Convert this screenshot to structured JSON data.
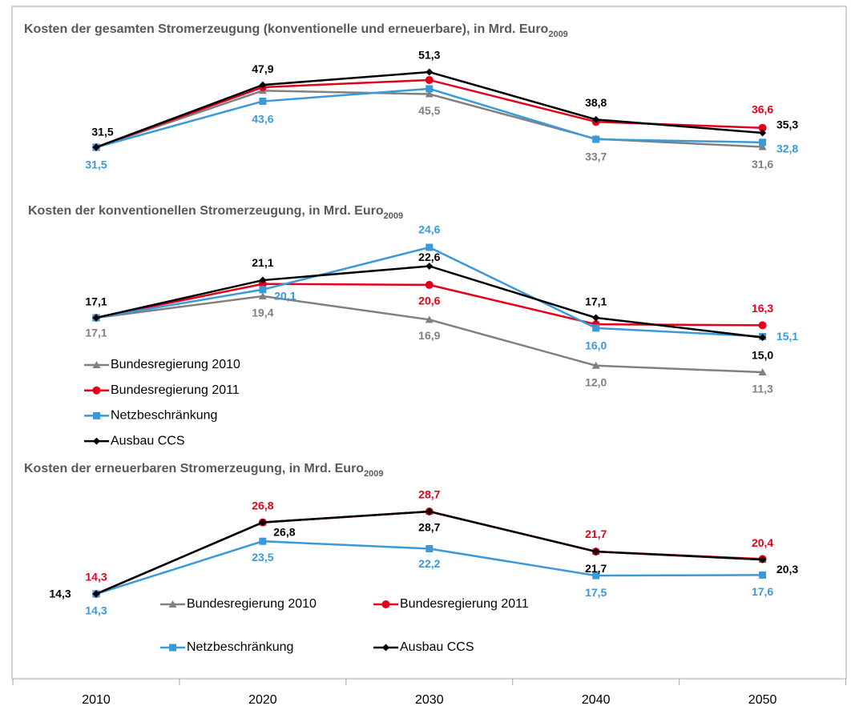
{
  "chart_data": [
    {
      "type": "line",
      "title": "Kosten der gesamten Stromerzeugung (konventionelle und erneuerbare), in Mrd. Euro",
      "title_subscript": "2009",
      "series": [
        {
          "name": "Bundesregierung 2010",
          "color": "#808080",
          "marker": "triangle",
          "values": [
            31.5,
            46.4,
            45.5,
            33.7,
            31.6
          ],
          "value_labels": [
            null,
            null,
            "45,5",
            "33,7",
            "31,6"
          ]
        },
        {
          "name": "Bundesregierung 2011",
          "color": "#e3001b",
          "marker": "circle",
          "values": [
            31.5,
            47.3,
            49.2,
            38.2,
            36.6
          ],
          "value_labels": [
            null,
            null,
            null,
            null,
            "36,6"
          ]
        },
        {
          "name": "Netzbeschränkung",
          "color": "#3a9ad9",
          "marker": "square",
          "values": [
            31.5,
            43.6,
            46.9,
            33.6,
            32.8
          ],
          "value_labels": [
            "31,5",
            "43,6",
            null,
            null,
            "32,8"
          ]
        },
        {
          "name": "Ausbau CCS",
          "color": "#000000",
          "marker": "diamond",
          "values": [
            31.5,
            47.9,
            51.3,
            38.8,
            35.3
          ],
          "value_labels": [
            "31,5",
            "47,9",
            "51,3",
            "38,8",
            "35,3"
          ]
        }
      ]
    },
    {
      "type": "line",
      "title": "Kosten der konventionellen Stromerzeugung, in Mrd. Euro",
      "title_subscript": "2009",
      "legend": "left",
      "series": [
        {
          "name": "Bundesregierung 2010",
          "color": "#808080",
          "marker": "triangle",
          "values": [
            17.1,
            19.4,
            16.9,
            12.0,
            11.3
          ],
          "value_labels": [
            "17,1",
            "19,4",
            "16,9",
            "12,0",
            "11,3"
          ]
        },
        {
          "name": "Bundesregierung 2011",
          "color": "#e3001b",
          "marker": "circle",
          "values": [
            17.1,
            20.7,
            20.6,
            16.4,
            16.3
          ],
          "value_labels": [
            null,
            null,
            "20,6",
            null,
            "16,3"
          ]
        },
        {
          "name": "Netzbeschränkung",
          "color": "#3a9ad9",
          "marker": "square",
          "values": [
            17.1,
            20.1,
            24.6,
            16.0,
            15.1
          ],
          "value_labels": [
            null,
            "20,1",
            "24,6",
            "16,0",
            "15,1"
          ]
        },
        {
          "name": "Ausbau CCS",
          "color": "#000000",
          "marker": "diamond",
          "values": [
            17.1,
            21.1,
            22.6,
            17.1,
            15.0
          ],
          "value_labels": [
            "17,1",
            "21,1",
            "22,6",
            "17,1",
            "15,0"
          ]
        }
      ]
    },
    {
      "type": "line",
      "title": "Kosten der erneuerbaren Stromerzeugung, in Mrd. Euro",
      "title_subscript": "2009",
      "legend": "bottom",
      "categories": [
        "2010",
        "2020",
        "2030",
        "2040",
        "2050"
      ],
      "series": [
        {
          "name": "Bundesregierung 2010",
          "color": "#808080",
          "marker": "triangle",
          "values": [
            14.3,
            26.8,
            28.7,
            21.7,
            20.3
          ]
        },
        {
          "name": "Bundesregierung 2011",
          "color": "#e3001b",
          "marker": "circle",
          "values": [
            14.3,
            26.8,
            28.7,
            21.7,
            20.4
          ],
          "value_labels": [
            "14,3",
            "26,8",
            "28,7",
            "21,7",
            "20,4"
          ]
        },
        {
          "name": "Netzbeschränkung",
          "color": "#3a9ad9",
          "marker": "square",
          "values": [
            14.3,
            23.5,
            22.2,
            17.5,
            17.6
          ],
          "value_labels": [
            "14,3",
            "23,5",
            "22,2",
            "17,5",
            "17,6"
          ]
        },
        {
          "name": "Ausbau CCS",
          "color": "#000000",
          "marker": "diamond",
          "values": [
            14.3,
            26.8,
            28.7,
            21.7,
            20.3
          ],
          "value_labels": [
            "14,3",
            "26,8",
            "28,7",
            "21,7",
            "20,3"
          ]
        }
      ]
    }
  ]
}
